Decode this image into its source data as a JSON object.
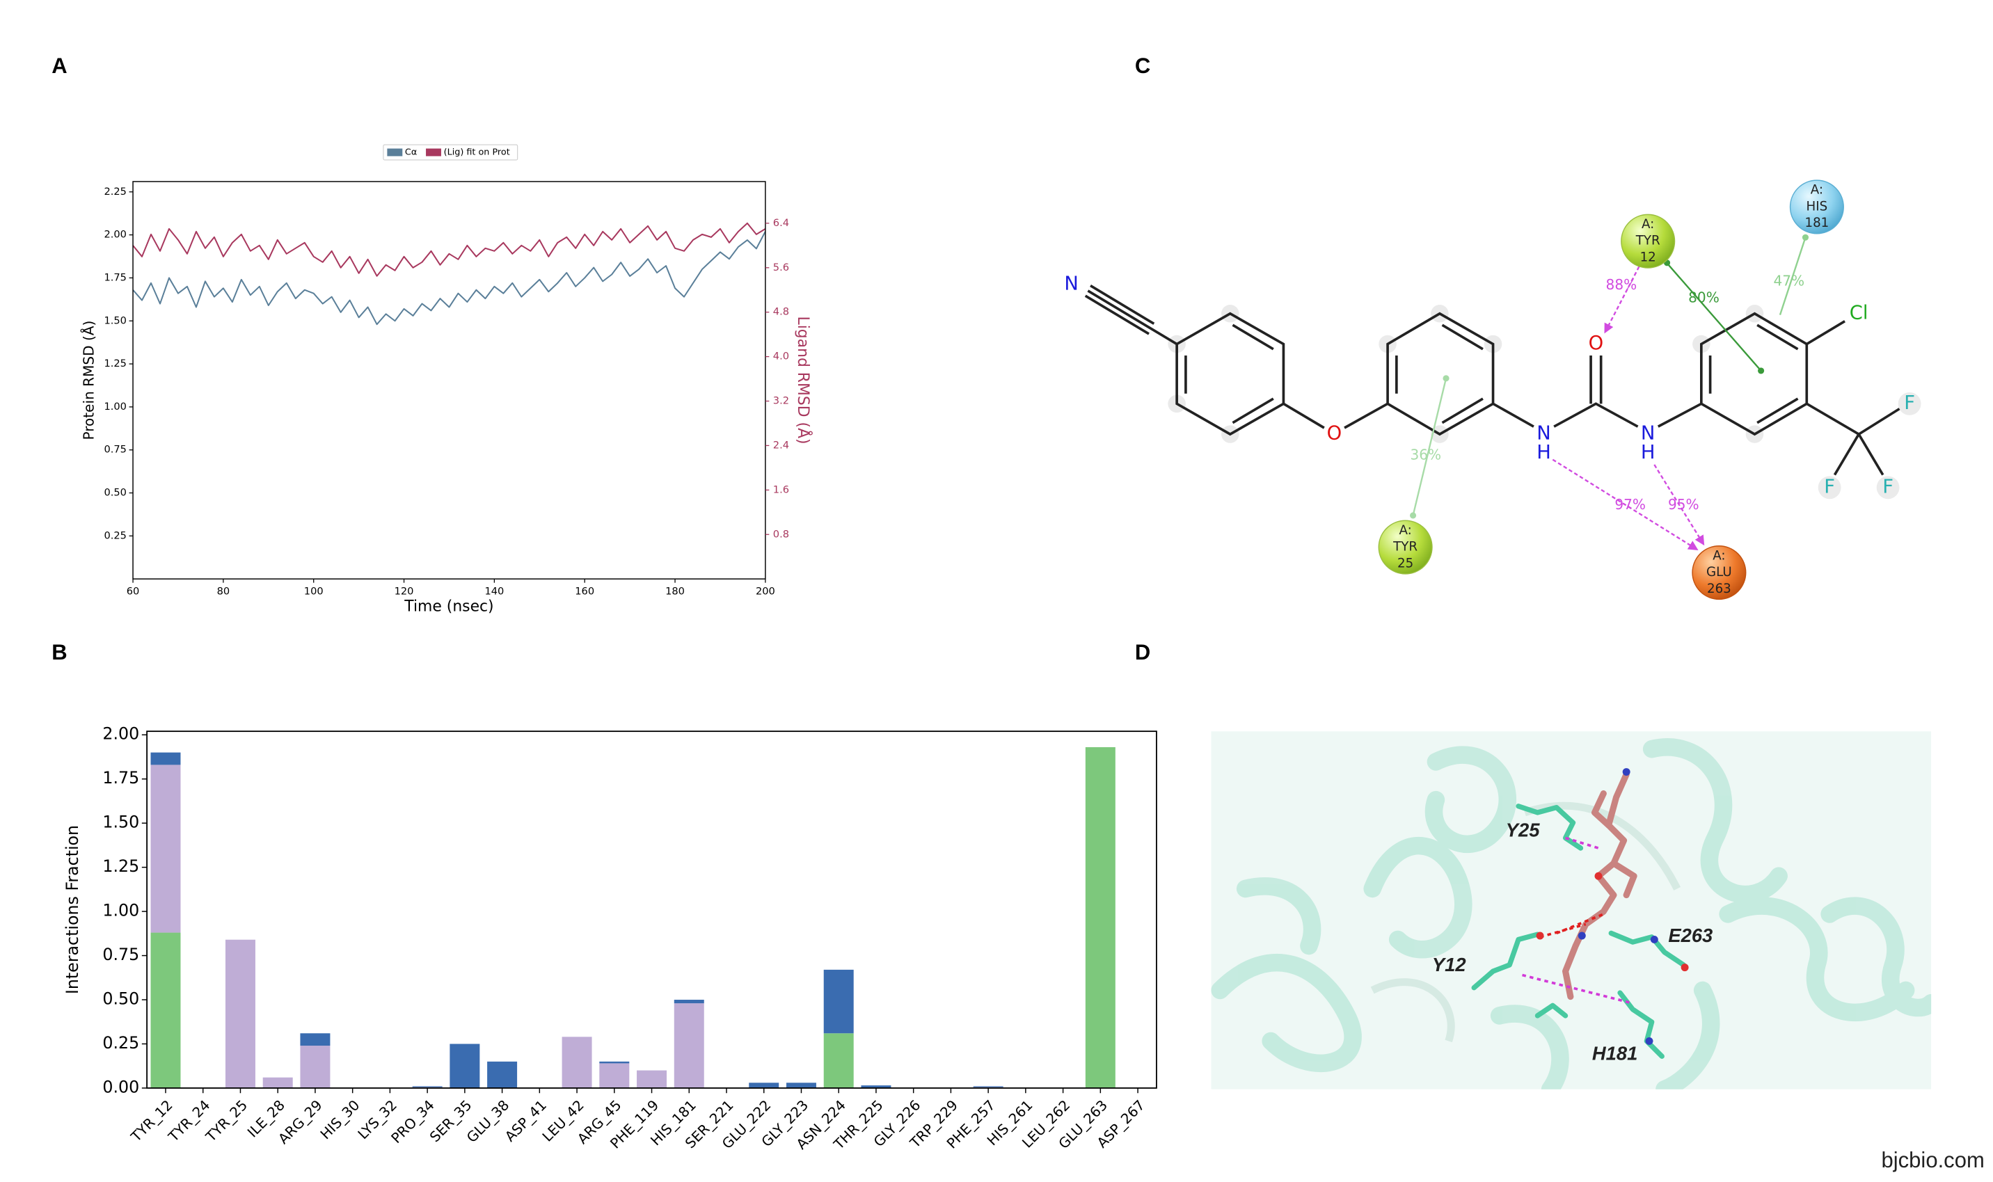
{
  "panel_labels": [
    "A",
    "B",
    "C",
    "D"
  ],
  "chart_data": [
    {
      "type": "line",
      "x": [
        60,
        62,
        64,
        66,
        68,
        70,
        72,
        74,
        76,
        78,
        80,
        82,
        84,
        86,
        88,
        90,
        92,
        94,
        96,
        98,
        100,
        102,
        104,
        106,
        108,
        110,
        112,
        114,
        116,
        118,
        120,
        122,
        124,
        126,
        128,
        130,
        132,
        134,
        136,
        138,
        140,
        142,
        144,
        146,
        148,
        150,
        152,
        154,
        156,
        158,
        160,
        162,
        164,
        166,
        168,
        170,
        172,
        174,
        176,
        178,
        180,
        182,
        184,
        186,
        188,
        190,
        192,
        194,
        196,
        198,
        200
      ],
      "series": [
        {
          "name": "Cα",
          "color": "#5a7f99",
          "axis": "y",
          "values": [
            1.68,
            1.62,
            1.72,
            1.6,
            1.75,
            1.66,
            1.7,
            1.58,
            1.73,
            1.64,
            1.69,
            1.61,
            1.74,
            1.65,
            1.7,
            1.59,
            1.67,
            1.72,
            1.63,
            1.68,
            1.66,
            1.6,
            1.64,
            1.55,
            1.62,
            1.52,
            1.58,
            1.48,
            1.54,
            1.5,
            1.57,
            1.53,
            1.6,
            1.56,
            1.63,
            1.58,
            1.66,
            1.61,
            1.68,
            1.63,
            1.7,
            1.66,
            1.72,
            1.64,
            1.69,
            1.74,
            1.67,
            1.72,
            1.78,
            1.7,
            1.75,
            1.81,
            1.73,
            1.77,
            1.84,
            1.76,
            1.8,
            1.86,
            1.78,
            1.82,
            1.69,
            1.64,
            1.72,
            1.8,
            1.85,
            1.9,
            1.86,
            1.93,
            1.97,
            1.92,
            2.02
          ]
        },
        {
          "name": "(Lig) fit on Prot",
          "color": "#a8385e",
          "axis": "y2",
          "values": [
            6.0,
            5.8,
            6.2,
            5.9,
            6.3,
            6.1,
            5.85,
            6.25,
            5.95,
            6.15,
            5.8,
            6.05,
            6.2,
            5.9,
            6.0,
            5.75,
            6.1,
            5.85,
            5.95,
            6.05,
            5.8,
            5.7,
            5.9,
            5.6,
            5.8,
            5.5,
            5.75,
            5.45,
            5.65,
            5.55,
            5.8,
            5.6,
            5.7,
            5.9,
            5.65,
            5.85,
            5.75,
            6.0,
            5.8,
            5.95,
            5.9,
            6.05,
            5.85,
            6.0,
            5.9,
            6.1,
            5.8,
            6.05,
            6.15,
            5.95,
            6.2,
            6.0,
            6.25,
            6.1,
            6.3,
            6.05,
            6.2,
            6.35,
            6.1,
            6.25,
            5.95,
            5.9,
            6.1,
            6.2,
            6.15,
            6.3,
            6.05,
            6.25,
            6.4,
            6.2,
            6.3
          ]
        }
      ],
      "xlim": [
        60,
        200
      ],
      "xticks": [
        60,
        80,
        100,
        120,
        140,
        160,
        180,
        200
      ],
      "ylim": [
        0,
        2.31
      ],
      "yticks": [
        0.25,
        {
          "value": 0.5,
          "label": "0.50"
        },
        0.75,
        {
          "value": 1,
          "label": "1.00"
        },
        1.25,
        {
          "value": 1.5,
          "label": "1.50"
        },
        1.75,
        {
          "value": 2,
          "label": "2.00"
        },
        2.25
      ],
      "y2lim": [
        0,
        7.15
      ],
      "y2ticks": [
        0.8,
        1.6,
        2.4,
        3.2,
        {
          "value": 4,
          "label": "4.0"
        },
        4.8,
        5.6,
        6.4
      ],
      "xlabel": "Time (nsec)",
      "ylabel": "Protein RMSD (Å)",
      "y2label": "Ligand RMSD (Å)",
      "legend": "upper center",
      "grid": false
    },
    {
      "type": "bar",
      "stacked": true,
      "categories": [
        "TYR_12",
        "TYR_24",
        "TYR_25",
        "ILE_28",
        "ARG_29",
        "HIS_30",
        "LYS_32",
        "PRO_34",
        "SER_35",
        "GLU_38",
        "ASP_41",
        "LEU_42",
        "ARG_45",
        "PHE_119",
        "HIS_181",
        "SER_221",
        "GLU_222",
        "GLY_223",
        "ASN_224",
        "THR_225",
        "GLY_226",
        "TRP_229",
        "PHE_257",
        "HIS_261",
        "LEU_262",
        "GLU_263",
        "ASP_267"
      ],
      "series": [
        {
          "color": "#7dc87c",
          "values": [
            0.88,
            0,
            0,
            0,
            0,
            0,
            0,
            0,
            0,
            0,
            0,
            0,
            0,
            0,
            0,
            0,
            0,
            0,
            0.31,
            0,
            0,
            0,
            0,
            0,
            0,
            1.93,
            0
          ]
        },
        {
          "color": "#bfadd6",
          "values": [
            0.95,
            0,
            0.84,
            0.06,
            0.24,
            0,
            0,
            0.005,
            0,
            0,
            0,
            0.29,
            0.14,
            0.1,
            0.48,
            0,
            0,
            0,
            0,
            0,
            0,
            0,
            0.005,
            0,
            0,
            0,
            0
          ]
        },
        {
          "color": "#3a6cb0",
          "values": [
            0.07,
            0,
            0,
            0,
            0.07,
            0,
            0,
            0.005,
            0.25,
            0.15,
            0,
            0,
            0.01,
            0,
            0.02,
            0,
            0.03,
            0.03,
            0.36,
            0.015,
            0,
            0,
            0.005,
            0,
            0,
            0,
            0
          ]
        }
      ],
      "ylim": [
        0,
        2.02
      ],
      "yticks": [
        {
          "value": 0,
          "label": "0.00"
        },
        0.25,
        {
          "value": 0.5,
          "label": "0.50"
        },
        0.75,
        {
          "value": 1,
          "label": "1.00"
        },
        1.25,
        {
          "value": 1.5,
          "label": "1.50"
        },
        1.75,
        {
          "value": 2,
          "label": "2.00"
        }
      ],
      "ylabel": "Interactions Fraction",
      "grid": false
    }
  ],
  "diagram": {
    "atoms": [
      "N",
      "O",
      "N",
      "H",
      "O",
      "N",
      "H",
      "Cl",
      "F",
      "F",
      "F"
    ],
    "residues": [
      {
        "chain": "A:",
        "name": "TYR",
        "number": "12"
      },
      {
        "chain": "A:",
        "name": "HIS",
        "number": "181"
      },
      {
        "chain": "A:",
        "name": "TYR",
        "number": "25"
      },
      {
        "chain": "A:",
        "name": "GLU",
        "number": "263"
      }
    ],
    "interactions": [
      "88%",
      "80%",
      "47%",
      "36%",
      "97%",
      "95%"
    ]
  },
  "structure_labels": [
    "Y25",
    "E263",
    "Y12",
    "H181"
  ],
  "watermark": "bjcbio.com"
}
